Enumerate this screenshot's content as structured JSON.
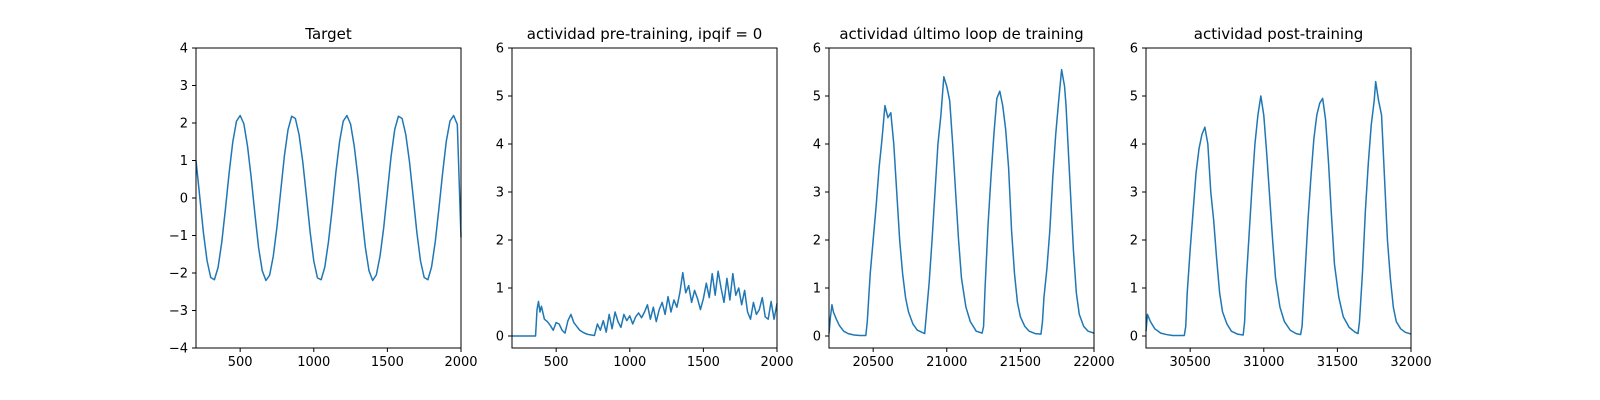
{
  "chart_data": [
    {
      "type": "line",
      "title": "Target",
      "xlabel": "",
      "ylabel": "",
      "xlim": [
        200,
        2000
      ],
      "ylim": [
        -4,
        4
      ],
      "xticks": [
        500,
        1000,
        1500,
        2000
      ],
      "yticks": [
        -4,
        -3,
        -2,
        -1,
        0,
        1,
        2,
        3,
        4
      ],
      "xtick_labels": [
        "500",
        "1000",
        "1500",
        "2000"
      ],
      "ytick_labels": [
        "−4",
        "−3",
        "−2",
        "−1",
        "0",
        "1",
        "2",
        "3",
        "4"
      ],
      "grid": false,
      "color": "#1f77b4",
      "series": [
        {
          "x": [
            200,
            225,
            250,
            275,
            300,
            325,
            350,
            375,
            400,
            425,
            450,
            475,
            500,
            525,
            550,
            575,
            600,
            625,
            650,
            675,
            700,
            725,
            750,
            775,
            800,
            825,
            850,
            875,
            900,
            925,
            950,
            975,
            1000,
            1025,
            1050,
            1075,
            1100,
            1125,
            1150,
            1175,
            1200,
            1225,
            1250,
            1275,
            1300,
            1325,
            1350,
            1375,
            1400,
            1425,
            1450,
            1475,
            1500,
            1525,
            1550,
            1575,
            1600,
            1625,
            1650,
            1675,
            1700,
            1725,
            1750,
            1775,
            1800,
            1825,
            1850,
            1875,
            1900,
            1925,
            1950,
            1975,
            2000
          ],
          "y": [
            1.0,
            0.05,
            -0.91,
            -1.67,
            -2.12,
            -2.18,
            -1.85,
            -1.18,
            -0.29,
            0.67,
            1.5,
            2.05,
            2.2,
            1.98,
            1.38,
            0.54,
            -0.42,
            -1.32,
            -1.94,
            -2.2,
            -2.06,
            -1.55,
            -0.77,
            0.17,
            1.11,
            1.82,
            2.18,
            2.12,
            1.69,
            0.97,
            0.05,
            -0.9,
            -1.68,
            -2.13,
            -2.18,
            -1.84,
            -1.16,
            -0.29,
            0.68,
            1.5,
            2.05,
            2.2,
            1.97,
            1.38,
            0.55,
            -0.41,
            -1.31,
            -1.94,
            -2.2,
            -2.05,
            -1.55,
            -0.79,
            0.16,
            1.11,
            1.83,
            2.18,
            2.12,
            1.69,
            0.97,
            0.04,
            -0.91,
            -1.68,
            -2.12,
            -2.18,
            -1.84,
            -1.17,
            -0.28,
            0.66,
            1.51,
            2.05,
            2.2,
            1.96,
            -1.05
          ]
        }
      ]
    },
    {
      "type": "line",
      "title": "actividad pre-training, ipqif = 0",
      "xlabel": "",
      "ylabel": "",
      "xlim": [
        200,
        2000
      ],
      "ylim": [
        -0.25,
        6
      ],
      "xticks": [
        500,
        1000,
        1500,
        2000
      ],
      "yticks": [
        0,
        1,
        2,
        3,
        4,
        5,
        6
      ],
      "xtick_labels": [
        "500",
        "1000",
        "1500",
        "2000"
      ],
      "ytick_labels": [
        "0",
        "1",
        "2",
        "3",
        "4",
        "5",
        "6"
      ],
      "grid": false,
      "color": "#1f77b4",
      "series": [
        {
          "x": [
            200,
            360,
            370,
            380,
            390,
            400,
            420,
            440,
            460,
            480,
            500,
            520,
            540,
            560,
            580,
            600,
            620,
            640,
            660,
            680,
            700,
            720,
            740,
            760,
            780,
            800,
            820,
            840,
            860,
            880,
            900,
            920,
            940,
            960,
            980,
            1000,
            1020,
            1040,
            1060,
            1080,
            1100,
            1120,
            1140,
            1160,
            1180,
            1200,
            1220,
            1240,
            1260,
            1280,
            1300,
            1320,
            1340,
            1360,
            1380,
            1400,
            1420,
            1440,
            1460,
            1480,
            1500,
            1520,
            1540,
            1560,
            1580,
            1600,
            1620,
            1640,
            1660,
            1680,
            1700,
            1720,
            1740,
            1760,
            1780,
            1800,
            1820,
            1840,
            1860,
            1880,
            1900,
            1920,
            1940,
            1960,
            1980,
            2000
          ],
          "y": [
            0,
            0,
            0.55,
            0.72,
            0.5,
            0.62,
            0.35,
            0.3,
            0.22,
            0.12,
            0.28,
            0.25,
            0.12,
            0.06,
            0.32,
            0.45,
            0.28,
            0.2,
            0.12,
            0.08,
            0.05,
            0.03,
            0.02,
            0.01,
            0.25,
            0.12,
            0.32,
            0.08,
            0.45,
            0.15,
            0.5,
            0.3,
            0.18,
            0.45,
            0.32,
            0.42,
            0.25,
            0.4,
            0.48,
            0.38,
            0.5,
            0.65,
            0.35,
            0.6,
            0.3,
            0.55,
            0.7,
            0.45,
            0.82,
            0.5,
            0.75,
            0.6,
            0.9,
            1.32,
            0.9,
            1.05,
            0.7,
            0.95,
            0.78,
            0.55,
            0.78,
            1.1,
            0.8,
            1.3,
            0.85,
            1.35,
            1.0,
            0.7,
            1.2,
            0.75,
            1.3,
            0.85,
            1.0,
            0.65,
            0.95,
            0.5,
            0.35,
            0.7,
            0.45,
            0.55,
            0.8,
            0.4,
            0.35,
            0.72,
            0.35,
            0.68
          ]
        }
      ]
    },
    {
      "type": "line",
      "title": "actividad último loop de training",
      "xlabel": "",
      "ylabel": "",
      "xlim": [
        20200,
        22000
      ],
      "ylim": [
        -0.25,
        6
      ],
      "xticks": [
        20500,
        21000,
        21500,
        22000
      ],
      "yticks": [
        0,
        1,
        2,
        3,
        4,
        5,
        6
      ],
      "xtick_labels": [
        "20500",
        "21000",
        "21500",
        "22000"
      ],
      "ytick_labels": [
        "0",
        "1",
        "2",
        "3",
        "4",
        "5",
        "6"
      ],
      "grid": false,
      "color": "#1f77b4",
      "series": [
        {
          "x": [
            20200,
            20210,
            20220,
            20230,
            20250,
            20270,
            20300,
            20330,
            20370,
            20410,
            20450,
            20460,
            20470,
            20480,
            20500,
            20520,
            20540,
            20560,
            20580,
            20600,
            20620,
            20640,
            20660,
            20680,
            20700,
            20720,
            20740,
            20770,
            20800,
            20850,
            20860,
            20880,
            20900,
            20920,
            20940,
            20960,
            20980,
            21000,
            21020,
            21040,
            21060,
            21080,
            21100,
            21130,
            21160,
            21200,
            21240,
            21250,
            21260,
            21280,
            21300,
            21320,
            21340,
            21360,
            21380,
            21400,
            21420,
            21440,
            21460,
            21480,
            21500,
            21530,
            21560,
            21600,
            21640,
            21650,
            21660,
            21680,
            21700,
            21720,
            21740,
            21760,
            21780,
            21800,
            21810,
            21820,
            21840,
            21860,
            21880,
            21900,
            21930,
            21960,
            22000
          ],
          "y": [
            0.05,
            0.4,
            0.65,
            0.5,
            0.35,
            0.22,
            0.1,
            0.05,
            0.02,
            0.01,
            0.01,
            0.3,
            0.8,
            1.3,
            2.0,
            2.7,
            3.5,
            4.1,
            4.8,
            4.55,
            4.65,
            4.0,
            3.0,
            2.0,
            1.3,
            0.8,
            0.5,
            0.25,
            0.12,
            0.05,
            0.4,
            1.1,
            2.0,
            3.0,
            4.0,
            4.6,
            5.4,
            5.2,
            4.9,
            4.0,
            3.0,
            2.0,
            1.2,
            0.6,
            0.3,
            0.1,
            0.06,
            0.2,
            1.0,
            2.3,
            3.3,
            4.2,
            4.95,
            5.1,
            4.8,
            4.3,
            3.5,
            2.2,
            1.3,
            0.7,
            0.4,
            0.2,
            0.1,
            0.05,
            0.04,
            0.3,
            0.8,
            1.4,
            2.2,
            3.3,
            4.2,
            4.9,
            5.55,
            5.2,
            4.8,
            4.2,
            3.0,
            1.8,
            0.9,
            0.45,
            0.2,
            0.1,
            0.06
          ]
        }
      ]
    },
    {
      "type": "line",
      "title": "actividad post-training",
      "xlabel": "",
      "ylabel": "",
      "xlim": [
        30200,
        32000
      ],
      "ylim": [
        -0.25,
        6
      ],
      "xticks": [
        30500,
        31000,
        31500,
        32000
      ],
      "yticks": [
        0,
        1,
        2,
        3,
        4,
        5,
        6
      ],
      "xtick_labels": [
        "30500",
        "31000",
        "31500",
        "32000"
      ],
      "ytick_labels": [
        "0",
        "1",
        "2",
        "3",
        "4",
        "5",
        "6"
      ],
      "grid": false,
      "color": "#1f77b4",
      "series": [
        {
          "x": [
            30200,
            30210,
            30230,
            30260,
            30300,
            30340,
            30380,
            30420,
            30460,
            30470,
            30480,
            30500,
            30520,
            30540,
            30560,
            30580,
            30600,
            30620,
            30640,
            30660,
            30680,
            30700,
            30720,
            30750,
            30780,
            30820,
            30860,
            30870,
            30880,
            30900,
            30920,
            30940,
            30960,
            30980,
            31000,
            31020,
            31040,
            31060,
            31080,
            31110,
            31140,
            31180,
            31220,
            31250,
            31260,
            31280,
            31300,
            31320,
            31340,
            31360,
            31380,
            31400,
            31420,
            31440,
            31460,
            31480,
            31510,
            31540,
            31580,
            31620,
            31640,
            31650,
            31670,
            31690,
            31710,
            31730,
            31750,
            31760,
            31780,
            31800,
            31820,
            31840,
            31860,
            31880,
            31900,
            31930,
            31960,
            32000
          ],
          "y": [
            0.1,
            0.45,
            0.3,
            0.15,
            0.06,
            0.03,
            0.01,
            0.01,
            0.01,
            0.2,
            0.9,
            1.8,
            2.6,
            3.4,
            3.9,
            4.2,
            4.35,
            4.0,
            3.0,
            2.4,
            1.6,
            0.9,
            0.5,
            0.25,
            0.1,
            0.04,
            0.02,
            0.3,
            1.1,
            2.1,
            3.1,
            4.0,
            4.6,
            5.0,
            4.6,
            3.8,
            2.9,
            2.0,
            1.2,
            0.6,
            0.3,
            0.12,
            0.05,
            0.03,
            0.2,
            1.3,
            2.4,
            3.3,
            4.1,
            4.6,
            4.85,
            4.95,
            4.5,
            3.6,
            2.5,
            1.5,
            0.8,
            0.4,
            0.18,
            0.08,
            0.05,
            0.3,
            1.3,
            2.6,
            3.6,
            4.4,
            4.9,
            5.3,
            4.9,
            4.6,
            3.3,
            2.0,
            1.2,
            0.6,
            0.3,
            0.15,
            0.08,
            0.04
          ]
        }
      ]
    }
  ]
}
